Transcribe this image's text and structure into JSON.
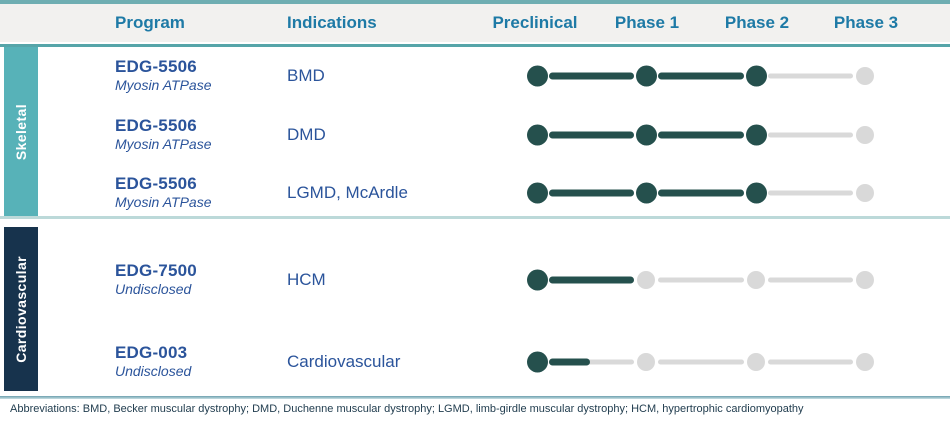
{
  "header": {
    "program_label": "Program",
    "indications_label": "Indications",
    "phases": [
      "Preclinical",
      "Phase 1",
      "Phase 2",
      "Phase 3"
    ]
  },
  "sections": [
    {
      "label": "Skeletal",
      "color": "#57B2B8",
      "text_color": "#FFFFFF"
    },
    {
      "label": "Cardiovascular",
      "color": "#17334D",
      "text_color": "#FFFFFF"
    }
  ],
  "rows": [
    {
      "section": "Skeletal",
      "program": "EDG-5506",
      "mechanism": "Myosin ATPase",
      "indication": "BMD",
      "dots": [
        1,
        1,
        1,
        0
      ],
      "segments": [
        1,
        1,
        0
      ]
    },
    {
      "section": "Skeletal",
      "program": "EDG-5506",
      "mechanism": "Myosin ATPase",
      "indication": "DMD",
      "dots": [
        1,
        1,
        1,
        0
      ],
      "segments": [
        1,
        1,
        0
      ]
    },
    {
      "section": "Skeletal",
      "program": "EDG-5506",
      "mechanism": "Myosin ATPase",
      "indication": "LGMD, McArdle",
      "dots": [
        1,
        1,
        1,
        0
      ],
      "segments": [
        1,
        1,
        0
      ]
    },
    {
      "section": "Cardiovascular",
      "program": "EDG-7500",
      "mechanism": "Undisclosed",
      "indication": "HCM",
      "dots": [
        1,
        0,
        0,
        0
      ],
      "segments": [
        1,
        0,
        0
      ]
    },
    {
      "section": "Cardiovascular",
      "program": "EDG-003",
      "mechanism": "Undisclosed",
      "indication": "Cardiovascular",
      "dots": [
        1,
        0,
        0,
        0
      ],
      "segments": [
        0.48,
        0,
        0
      ]
    }
  ],
  "footer": {
    "note": "Abbreviations:  BMD, Becker muscular dystrophy; DMD, Duchenne muscular dystrophy; LGMD, limb-girdle muscular dystrophy; HCM, hypertrophic cardiomyopathy"
  },
  "colors": {
    "done": "#25504D",
    "pending": "#D9D9D9",
    "header_text": "#1E7AA6",
    "body_text": "#2B549B",
    "accent_strip": "#6FAEB2",
    "header_bg": "#F2F1EF",
    "header_underline": "#56A5A9",
    "section_divider": "#BCD9D9",
    "footer_text": "#1F3B4D"
  },
  "chart_data": {
    "type": "table",
    "columns": [
      "Program",
      "Indications",
      "Preclinical",
      "Phase 1",
      "Phase 2",
      "Phase 3"
    ],
    "rows": [
      {
        "group": "Skeletal",
        "program": "EDG-5506 (Myosin ATPase)",
        "indication": "BMD",
        "progress": {
          "preclinical": "complete",
          "phase1": "complete",
          "phase2": "reached",
          "phase3": "not started"
        }
      },
      {
        "group": "Skeletal",
        "program": "EDG-5506 (Myosin ATPase)",
        "indication": "DMD",
        "progress": {
          "preclinical": "complete",
          "phase1": "complete",
          "phase2": "reached",
          "phase3": "not started"
        }
      },
      {
        "group": "Skeletal",
        "program": "EDG-5506 (Myosin ATPase)",
        "indication": "LGMD, McArdle",
        "progress": {
          "preclinical": "complete",
          "phase1": "complete",
          "phase2": "reached",
          "phase3": "not started"
        }
      },
      {
        "group": "Cardiovascular",
        "program": "EDG-7500 (Undisclosed)",
        "indication": "HCM",
        "progress": {
          "preclinical": "complete",
          "phase1": "approaching",
          "phase2": "not started",
          "phase3": "not started"
        }
      },
      {
        "group": "Cardiovascular",
        "program": "EDG-003 (Undisclosed)",
        "indication": "Cardiovascular",
        "progress": {
          "preclinical": "in progress (~50%)",
          "phase1": "not started",
          "phase2": "not started",
          "phase3": "not started"
        }
      }
    ],
    "legend": "Dark teal = progress achieved; light gray = future stage"
  }
}
